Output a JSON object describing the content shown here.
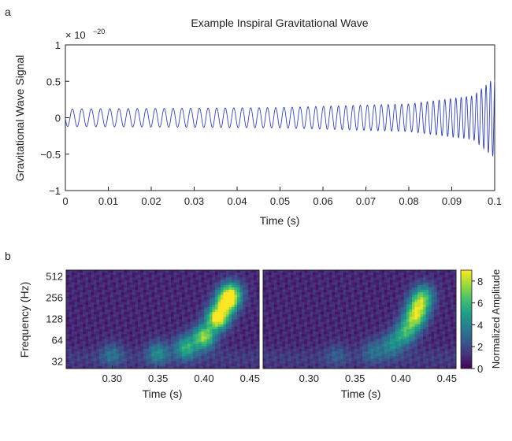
{
  "colors": {
    "axis": "#222222",
    "signal": "#3344aa",
    "colormap": [
      "#440154",
      "#46327e",
      "#365c8d",
      "#277f8e",
      "#1fa187",
      "#4ac16d",
      "#a0da39",
      "#fde725"
    ]
  },
  "chart_data": [
    {
      "panel_label": "a",
      "type": "line",
      "title": "Example Inspiral Gravitational Wave",
      "xlabel": "Time (s)",
      "ylabel": "Gravitational Wave Signal",
      "y_multiplier": "× 10",
      "y_multiplier_exp": "−20",
      "xlim": [
        0,
        0.1
      ],
      "ylim": [
        -1,
        1
      ],
      "xticks": [
        0,
        0.01,
        0.02,
        0.03,
        0.04,
        0.05,
        0.06,
        0.07,
        0.08,
        0.09,
        0.1
      ],
      "xtick_labels": [
        "0",
        "0.01",
        "0.02",
        "0.03",
        "0.04",
        "0.05",
        "0.06",
        "0.07",
        "0.08",
        "0.09",
        "0.1"
      ],
      "yticks": [
        1,
        0.5,
        0,
        -0.5,
        -1
      ],
      "ytick_labels": [
        "1",
        "0.5",
        "0",
        "−0.5",
        "−1"
      ],
      "series": [
        {
          "description_points": [
            {
              "t": 0.0,
              "amplitude": 0.12,
              "frequency_hz": 450
            },
            {
              "t": 0.05,
              "amplitude": 0.14,
              "frequency_hz": 520
            },
            {
              "t": 0.08,
              "amplitude": 0.19,
              "frequency_hz": 650
            },
            {
              "t": 0.095,
              "amplitude": 0.3,
              "frequency_hz": 850
            },
            {
              "t": 0.1,
              "amplitude": 0.55,
              "frequency_hz": 1000
            }
          ]
        }
      ],
      "grid": false
    },
    {
      "panel_label": "b",
      "type": "heatmap",
      "ylabel": "Frequency (Hz)",
      "colorbar_label": "Normalized Amplitude",
      "colorbar_ticks": [
        0,
        2,
        4,
        6,
        8
      ],
      "colorbar_range": [
        0,
        9
      ],
      "yticks": [
        32,
        64,
        128,
        256,
        512
      ],
      "ytick_labels": [
        "32",
        "64",
        "128",
        "256",
        "512"
      ],
      "yscale": "log2",
      "ylim": [
        25,
        620
      ],
      "panels": [
        {
          "xlabel": "Time (s)",
          "xlim": [
            0.25,
            0.46
          ],
          "xticks": [
            0.3,
            0.35,
            0.4,
            0.45
          ],
          "xtick_labels": [
            "0.30",
            "0.35",
            "0.40",
            "0.45"
          ],
          "chirp_track": [
            {
              "t": 0.3,
              "f": 40,
              "amp": 2.0
            },
            {
              "t": 0.35,
              "f": 42,
              "amp": 3.0
            },
            {
              "t": 0.38,
              "f": 50,
              "amp": 4.5
            },
            {
              "t": 0.4,
              "f": 70,
              "amp": 6.5
            },
            {
              "t": 0.415,
              "f": 130,
              "amp": 8.5
            },
            {
              "t": 0.425,
              "f": 220,
              "amp": 7.5
            },
            {
              "t": 0.43,
              "f": 300,
              "amp": 5.0
            }
          ]
        },
        {
          "xlabel": "Time (s)",
          "xlim": [
            0.25,
            0.46
          ],
          "xticks": [
            0.3,
            0.35,
            0.4,
            0.45
          ],
          "xtick_labels": [
            "0.30",
            "0.35",
            "0.40",
            "0.45"
          ],
          "chirp_track": [
            {
              "t": 0.33,
              "f": 40,
              "amp": 1.2
            },
            {
              "t": 0.37,
              "f": 45,
              "amp": 2.0
            },
            {
              "t": 0.39,
              "f": 55,
              "amp": 3.0
            },
            {
              "t": 0.405,
              "f": 80,
              "amp": 4.5
            },
            {
              "t": 0.415,
              "f": 130,
              "amp": 6.0
            },
            {
              "t": 0.42,
              "f": 200,
              "amp": 5.0
            },
            {
              "t": 0.425,
              "f": 280,
              "amp": 3.5
            }
          ]
        }
      ]
    }
  ]
}
